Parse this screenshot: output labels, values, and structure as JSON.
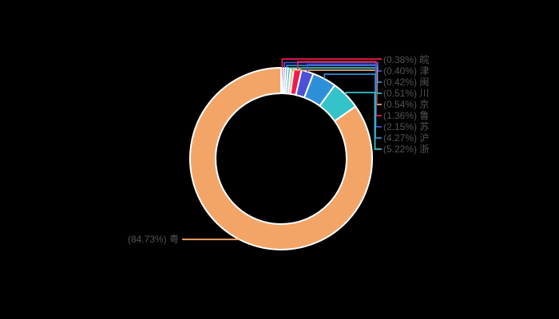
{
  "background_color": "#000000",
  "chart_data": {
    "type": "pie",
    "variant": "donut",
    "title": "",
    "legend": "none",
    "grid": "off",
    "direction": "clockwise",
    "start": "12-oclock",
    "order": "ascending-then-largest",
    "slice_border_color": "#ffffff",
    "label_text_color": "#545454",
    "palette_cycle": [
      "#EC1C4E",
      "#4C52D6",
      "#2E8FD9",
      "#34C3C9",
      "#F3A568"
    ],
    "label_format": "(value%) name",
    "items": [
      {
        "id": "wan",
        "name": "皖",
        "value": 0.38,
        "percent_text": "0.38%",
        "display_label": "(0.38%) 皖",
        "color": "#EC1C4E",
        "label_side": "right"
      },
      {
        "id": "jin",
        "name": "津",
        "value": 0.4,
        "percent_text": "0.40%",
        "display_label": "(0.40%) 津",
        "color": "#4C52D6",
        "label_side": "right"
      },
      {
        "id": "min",
        "name": "闽",
        "value": 0.42,
        "percent_text": "0.42%",
        "display_label": "(0.42%) 闽",
        "color": "#2E8FD9",
        "label_side": "right"
      },
      {
        "id": "chuan",
        "name": "川",
        "value": 0.51,
        "percent_text": "0.51%",
        "display_label": "(0.51%) 川",
        "color": "#34C3C9",
        "label_side": "right"
      },
      {
        "id": "jing",
        "name": "京",
        "value": 0.54,
        "percent_text": "0.54%",
        "display_label": "(0.54%) 京",
        "color": "#F3A568",
        "label_side": "right"
      },
      {
        "id": "lu",
        "name": "鲁",
        "value": 1.36,
        "percent_text": "1.36%",
        "display_label": "(1.36%) 鲁",
        "color": "#EC1C4E",
        "label_side": "right"
      },
      {
        "id": "su",
        "name": "苏",
        "value": 2.15,
        "percent_text": "2.15%",
        "display_label": "(2.15%) 苏",
        "color": "#4C52D6",
        "label_side": "right"
      },
      {
        "id": "hu",
        "name": "沪",
        "value": 4.27,
        "percent_text": "4.27%",
        "display_label": "(4.27%) 沪",
        "color": "#2E8FD9",
        "label_side": "right"
      },
      {
        "id": "zhe",
        "name": "浙",
        "value": 5.22,
        "percent_text": "5.22%",
        "display_label": "(5.22%) 浙",
        "color": "#34C3C9",
        "label_side": "right"
      },
      {
        "id": "yue",
        "name": "粤",
        "value": 84.73,
        "percent_text": "84.73%",
        "display_label": "(84.73%) 粤",
        "color": "#F3A568",
        "label_side": "left"
      }
    ]
  }
}
